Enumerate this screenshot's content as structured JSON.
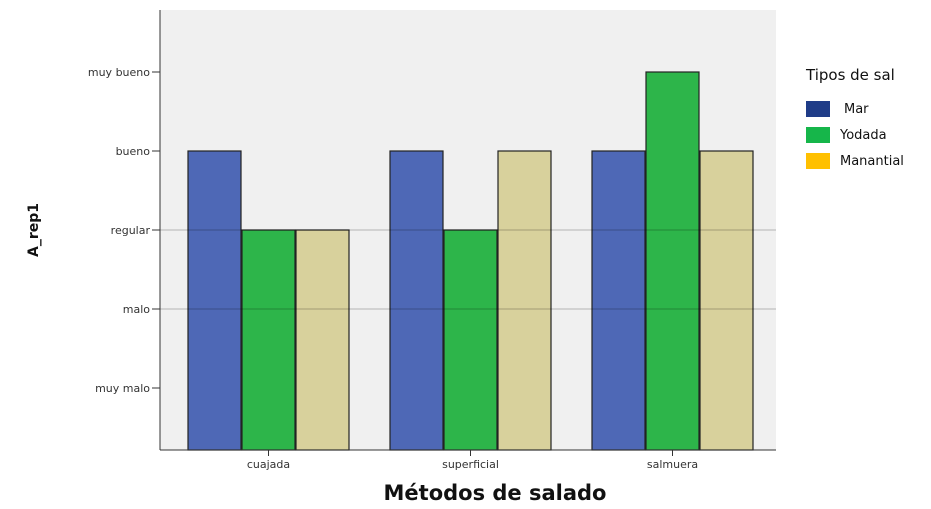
{
  "chart_data": {
    "type": "bar",
    "categories": [
      "cuajada",
      "superficial",
      "salmuera"
    ],
    "y_ticks": [
      "muy malo",
      "malo",
      "regular",
      "bueno",
      "muy bueno"
    ],
    "series": [
      {
        "name": "Mar",
        "color": "#1f3c88",
        "values": [
          "bueno",
          "bueno",
          "bueno"
        ]
      },
      {
        "name": "Yodada",
        "color": "#16b64a",
        "values": [
          "regular",
          "regular",
          "muy bueno"
        ]
      },
      {
        "name": "Manantial",
        "color": "#ffc000",
        "values": [
          "regular",
          "bueno",
          "bueno"
        ]
      }
    ],
    "xlabel": "Métodos de salado",
    "ylabel": "A_rep1",
    "legend_title": "Tipos de sal",
    "legend_position": "right",
    "grid": false
  }
}
